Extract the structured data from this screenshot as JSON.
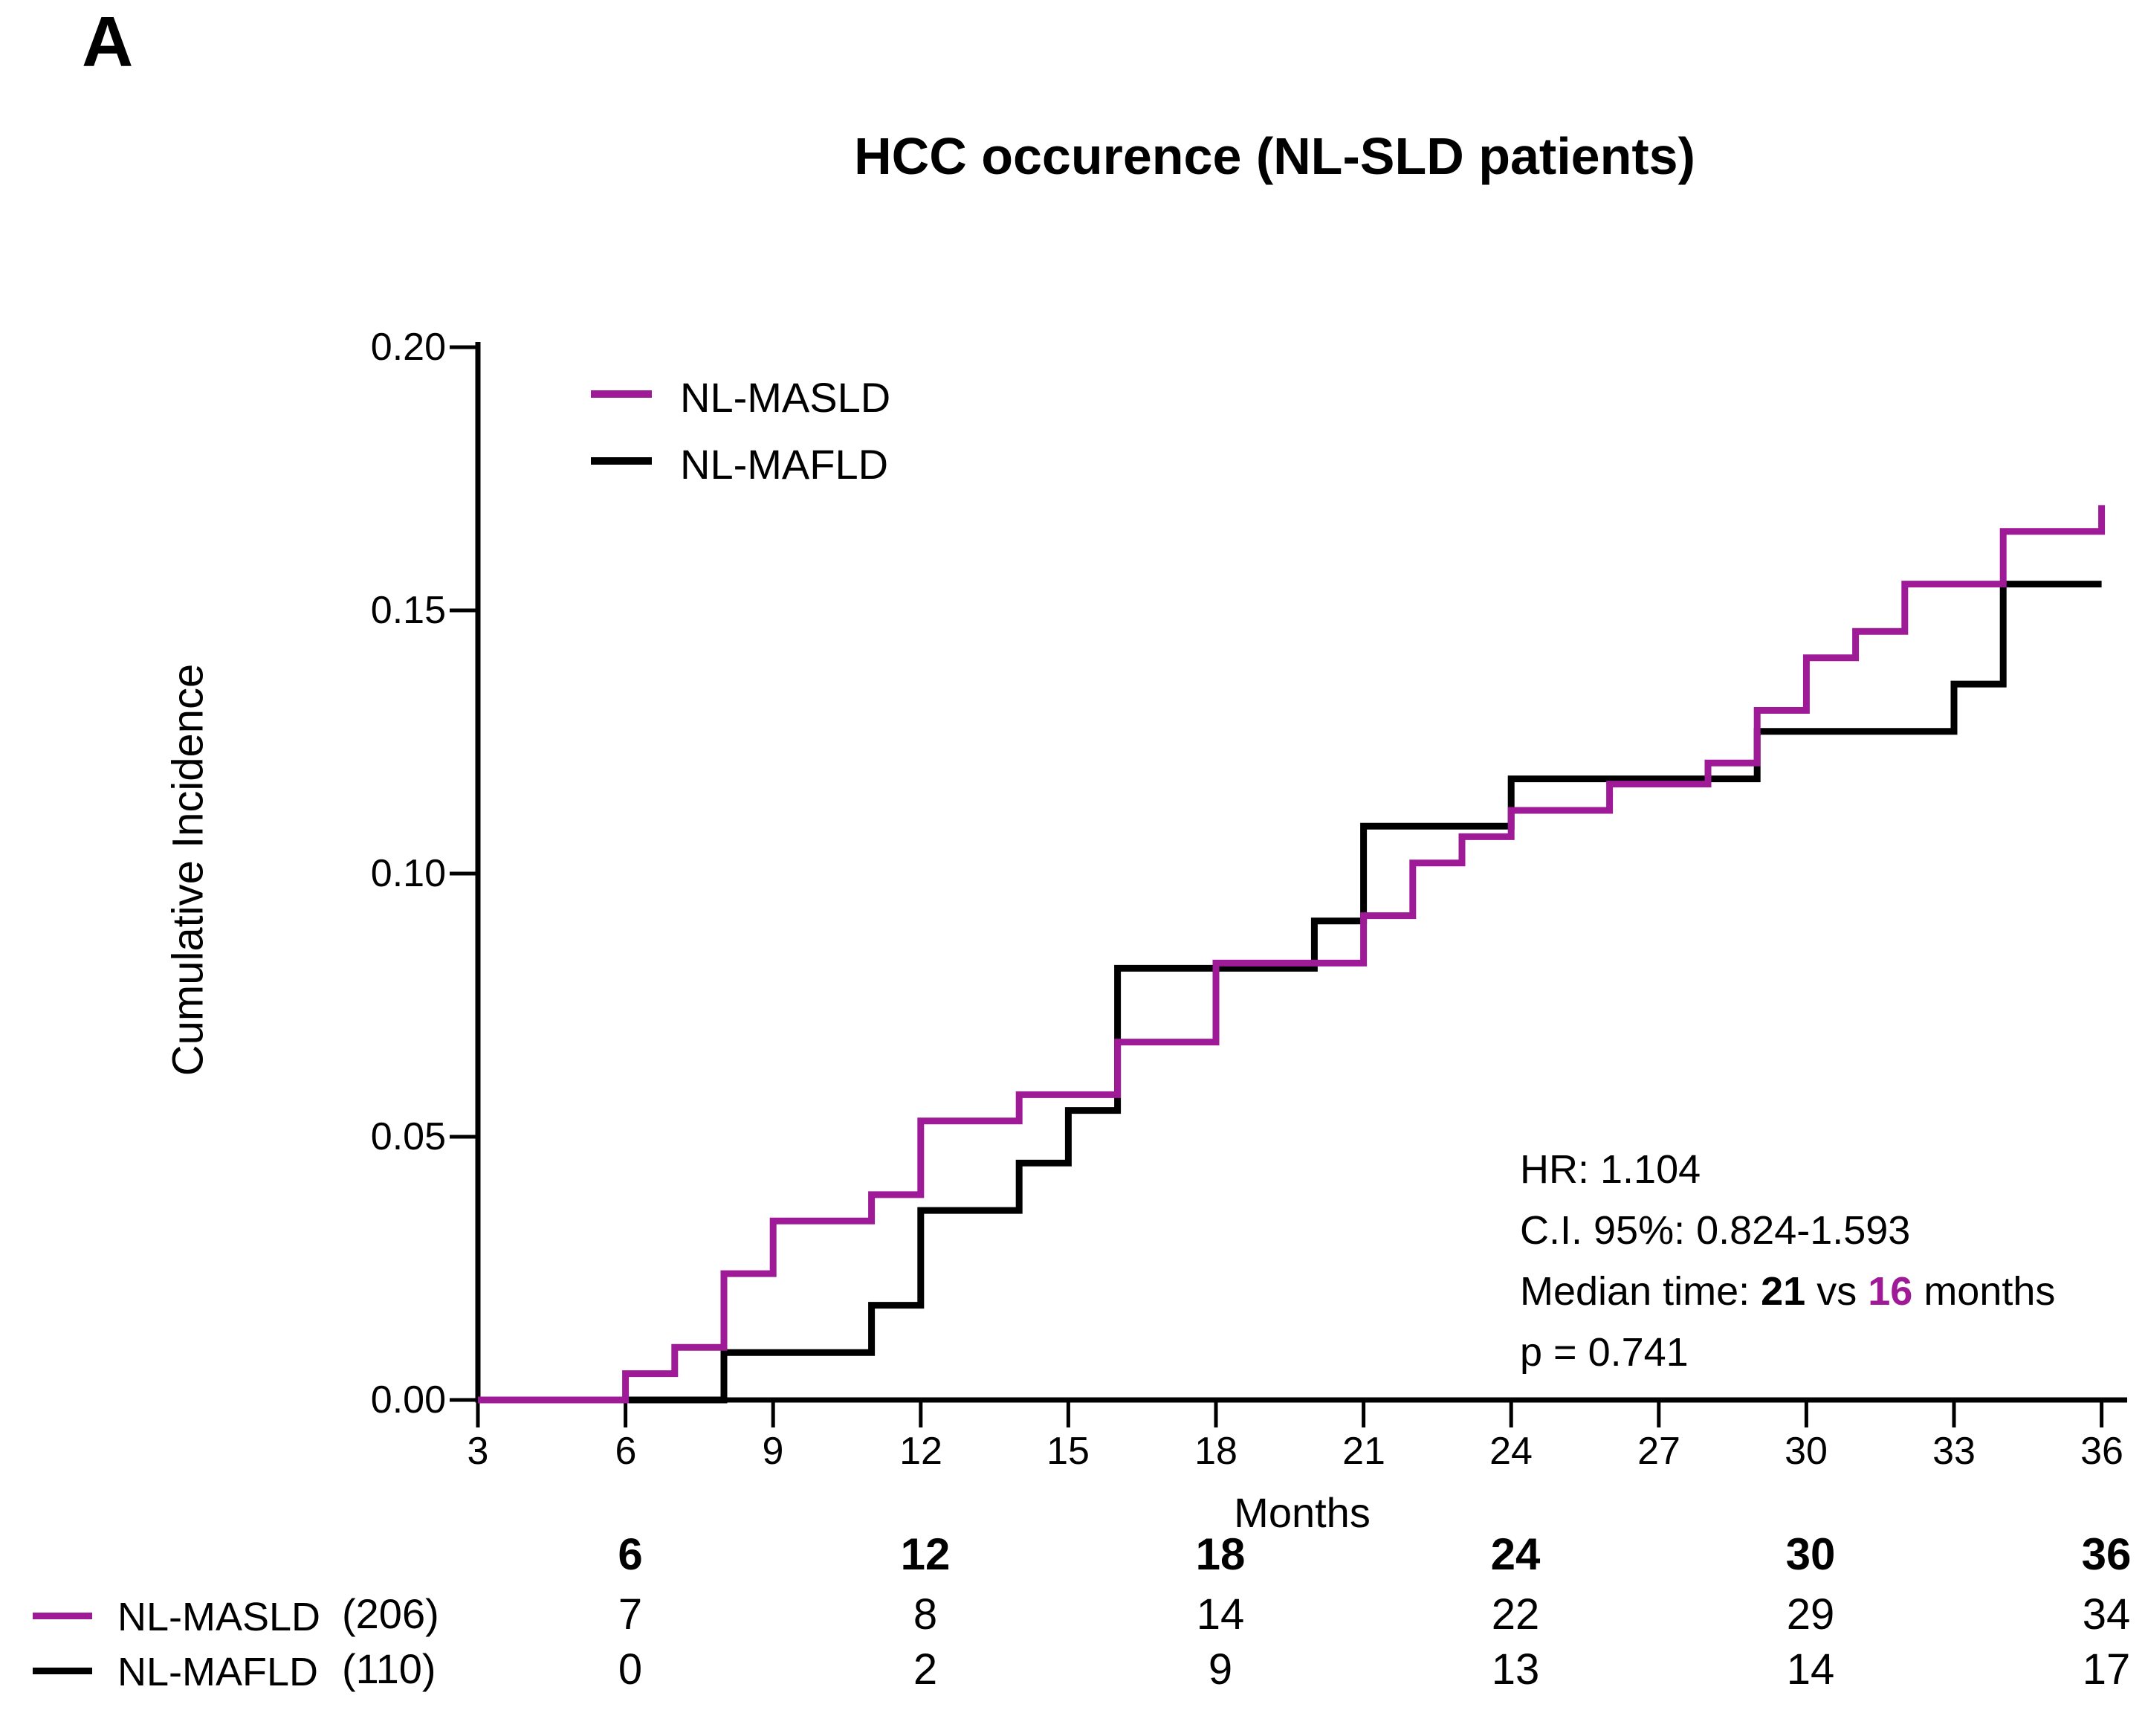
{
  "panel_label": "A",
  "title": "HCC occurence (NL-SLD patients)",
  "colors": {
    "accent_purple": "#9E1A97",
    "black": "#000000"
  },
  "axes": {
    "y_label": "Cumulative Incidence",
    "x_label": "Months",
    "y_tick_labels": [
      "0.00",
      "0.05",
      "0.10",
      "0.15",
      "0.20"
    ],
    "x_tick_labels": [
      "3",
      "6",
      "9",
      "12",
      "15",
      "18",
      "21",
      "24",
      "27",
      "30",
      "33",
      "36"
    ]
  },
  "legend": [
    {
      "label": "NL-MASLD",
      "color": "#9E1A97"
    },
    {
      "label": "NL-MAFLD",
      "color": "#000000"
    }
  ],
  "stats": {
    "hr": "HR: 1.104",
    "ci": "C.I. 95%: 0.824-1.593",
    "median_prefix": "Median time: ",
    "median_value_black": "21",
    "median_vs": " vs ",
    "median_value_purple": "16",
    "median_suffix": " months",
    "p_value": "p = 0.741"
  },
  "chart_data": {
    "type": "line",
    "subtype": "kaplan-meier-cumulative-incidence-steps",
    "title": "HCC occurence (NL-SLD patients)",
    "xlabel": "Months",
    "ylabel": "Cumulative Incidence",
    "xlim": [
      3,
      36
    ],
    "ylim": [
      0,
      0.2
    ],
    "xticks": [
      3,
      6,
      9,
      12,
      15,
      18,
      21,
      24,
      27,
      30,
      33,
      36
    ],
    "yticks": [
      0.0,
      0.05,
      0.1,
      0.15,
      0.2
    ],
    "grid": false,
    "legend_position": "top-left-inside",
    "series": [
      {
        "name": "NL-MASLD",
        "color": "#9E1A97",
        "n_at_start": 206,
        "steps": [
          [
            3,
            0
          ],
          [
            6,
            0.005
          ],
          [
            7,
            0.01
          ],
          [
            8,
            0.024
          ],
          [
            9,
            0.034
          ],
          [
            11,
            0.039
          ],
          [
            12,
            0.053
          ],
          [
            14,
            0.058
          ],
          [
            16,
            0.068
          ],
          [
            18,
            0.083
          ],
          [
            21,
            0.092
          ],
          [
            22,
            0.102
          ],
          [
            23,
            0.107
          ],
          [
            24,
            0.112
          ],
          [
            26,
            0.117
          ],
          [
            28,
            0.121
          ],
          [
            29,
            0.131
          ],
          [
            30,
            0.141
          ],
          [
            31,
            0.146
          ],
          [
            32,
            0.155
          ],
          [
            34,
            0.165
          ],
          [
            36,
            0.17
          ]
        ]
      },
      {
        "name": "NL-MAFLD",
        "color": "#000000",
        "n_at_start": 110,
        "steps": [
          [
            3,
            0
          ],
          [
            8,
            0.009
          ],
          [
            11,
            0.018
          ],
          [
            12,
            0.036
          ],
          [
            14,
            0.045
          ],
          [
            15,
            0.055
          ],
          [
            16,
            0.082
          ],
          [
            20,
            0.091
          ],
          [
            21,
            0.109
          ],
          [
            24,
            0.118
          ],
          [
            29,
            0.127
          ],
          [
            33,
            0.136
          ],
          [
            34,
            0.155
          ],
          [
            36,
            0.155
          ]
        ]
      }
    ],
    "annotations": [
      "HR: 1.104",
      "C.I. 95%: 0.824-1.593",
      "Median time: 21 vs 16 months",
      "p = 0.741"
    ]
  },
  "risk_table": {
    "columns": [
      "6",
      "12",
      "18",
      "24",
      "30",
      "36"
    ],
    "rows": [
      {
        "label": "NL-MASLD",
        "n": "(206)",
        "color": "#9E1A97",
        "values": [
          "7",
          "8",
          "14",
          "22",
          "29",
          "34"
        ]
      },
      {
        "label": "NL-MAFLD",
        "n": "(110)",
        "color": "#000000",
        "values": [
          "0",
          "2",
          "9",
          "13",
          "14",
          "17"
        ]
      }
    ]
  }
}
